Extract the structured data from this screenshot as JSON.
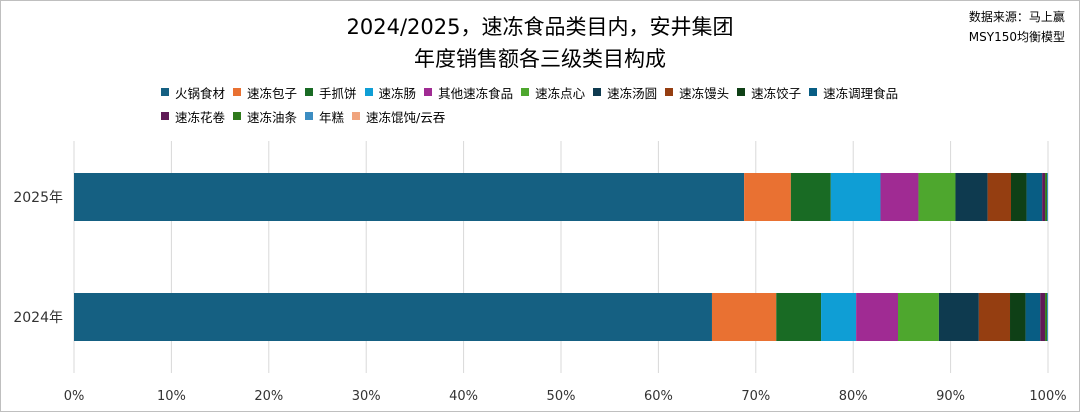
{
  "title_line1": "2024/2025，速冻食品类目内，安井集团",
  "title_line2": "年度销售额各三级类目构成",
  "source_line1": "数据来源：马上赢",
  "source_line2": "MSY150均衡模型",
  "chart_data": {
    "type": "bar",
    "orientation": "horizontal",
    "stacked": "percent",
    "categories": [
      "2025年",
      "2024年"
    ],
    "xlim": [
      0,
      100
    ],
    "x_ticks": [
      "0%",
      "10%",
      "20%",
      "30%",
      "40%",
      "50%",
      "60%",
      "70%",
      "80%",
      "90%",
      "100%"
    ],
    "grid": true,
    "legend_position": "top",
    "series": [
      {
        "name": "火锅食材",
        "color": "#156082",
        "values": [
          68.8,
          65.5
        ]
      },
      {
        "name": "速冻包子",
        "color": "#E97132",
        "values": [
          4.8,
          6.6
        ]
      },
      {
        "name": "手抓饼",
        "color": "#196B24",
        "values": [
          4.1,
          4.6
        ]
      },
      {
        "name": "速冻肠",
        "color": "#0F9ED5",
        "values": [
          5.1,
          3.6
        ]
      },
      {
        "name": "其他速冻食品",
        "color": "#A02B93",
        "values": [
          3.9,
          4.3
        ]
      },
      {
        "name": "速冻点心",
        "color": "#4EA72E",
        "values": [
          3.8,
          4.2
        ]
      },
      {
        "name": "速冻汤圆",
        "color": "#0E3A4F",
        "values": [
          3.3,
          4.1
        ]
      },
      {
        "name": "速冻馒头",
        "color": "#953E11",
        "values": [
          2.4,
          3.2
        ]
      },
      {
        "name": "速冻饺子",
        "color": "#0F4016",
        "values": [
          1.6,
          1.6
        ]
      },
      {
        "name": "速冻调理食品",
        "color": "#085D84",
        "values": [
          1.6,
          1.5
        ]
      },
      {
        "name": "速冻花卷",
        "color": "#5F1A56",
        "values": [
          0.3,
          0.5
        ]
      },
      {
        "name": "速冻油条",
        "color": "#2F7A1C",
        "values": [
          0.2,
          0.2
        ]
      },
      {
        "name": "年糕",
        "color": "#3C8DC2",
        "values": [
          0.1,
          0.1
        ]
      },
      {
        "name": "速冻馄饨/云吞",
        "color": "#F0A47D",
        "values": [
          0.0,
          0.0
        ]
      }
    ]
  }
}
